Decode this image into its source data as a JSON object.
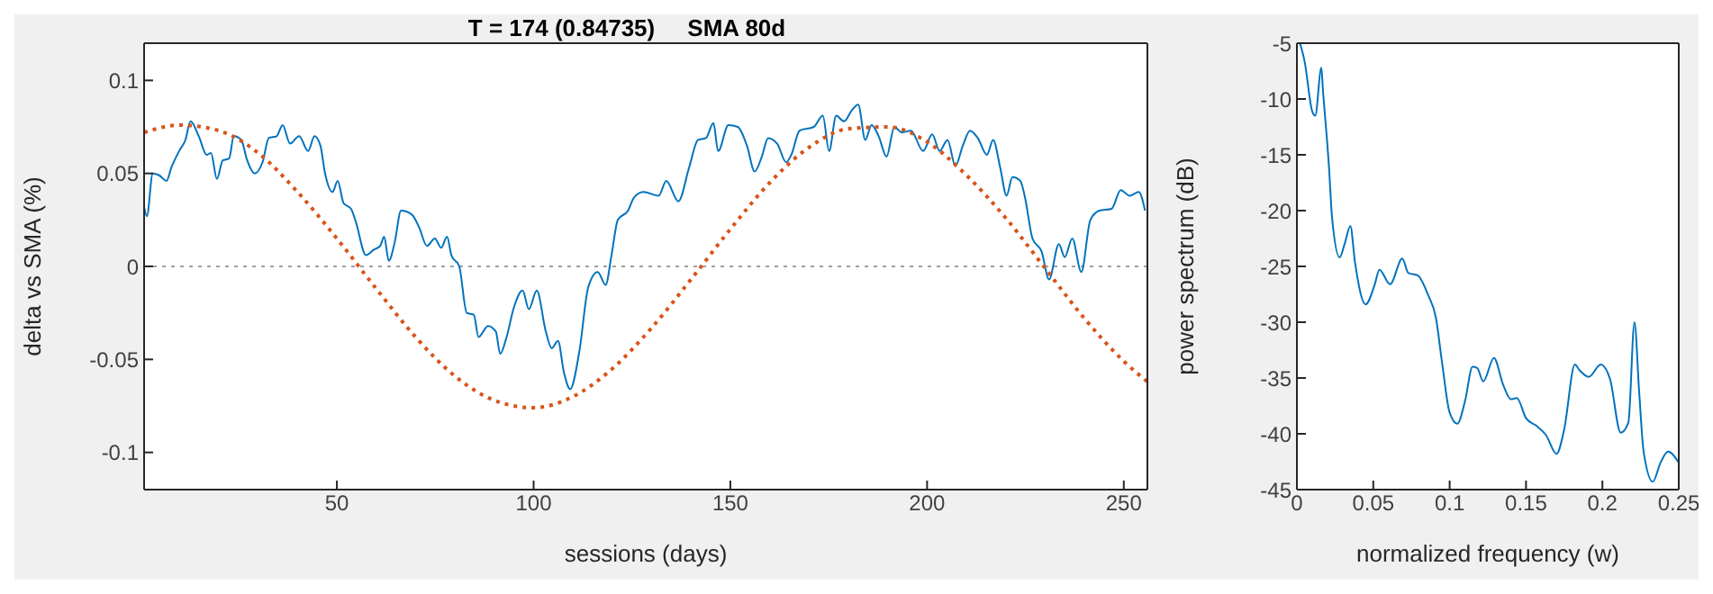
{
  "chart_data": [
    {
      "type": "line",
      "title": "T = 174 (0.84735)     SMA 80d",
      "xlabel": "sessions (days)",
      "ylabel": "delta vs SMA (%)",
      "xlim": [
        1,
        256
      ],
      "xticks": [
        50,
        100,
        150,
        200,
        250
      ],
      "ylim": [
        -0.12,
        0.12
      ],
      "yticks": [
        -0.1,
        -0.05,
        0,
        0.05,
        0.1
      ],
      "marker": "none",
      "ref_lines": [
        {
          "axis": "y",
          "value": 0,
          "color": "#a0a0a0",
          "line_style": "dotted"
        }
      ],
      "series": [
        {
          "color": "#0072bd",
          "line_style": "solid",
          "x": [
            1,
            1.7,
            3.2,
            4.8,
            6.7,
            7.9,
            9.9,
            11.5,
            12.8,
            14.9,
            16.9,
            18,
            19.5,
            21,
            22.6,
            23.8,
            25.7,
            27.2,
            29.1,
            31.1,
            32.7,
            34.7,
            36.2,
            38.1,
            40.4,
            42.7,
            44.3,
            45.8,
            47,
            48.9,
            50.2,
            51.7,
            53.6,
            54.8,
            57.4,
            59.4,
            61,
            62,
            63.2,
            64.7,
            66.3,
            69,
            70.9,
            72.9,
            74.9,
            76.5,
            78,
            79.1,
            81.1,
            83,
            84.8,
            86,
            88.4,
            90.4,
            91.5,
            93,
            95,
            97.2,
            98.8,
            100.8,
            103.1,
            104.6,
            106.2,
            107.7,
            109.3,
            111.6,
            113.9,
            116.3,
            118.3,
            119.8,
            121.4,
            124,
            125.5,
            127.9,
            131.8,
            133.7,
            136.8,
            139.5,
            141.8,
            143.8,
            145.7,
            146.9,
            149.5,
            151.9,
            154.2,
            156.2,
            158,
            159.6,
            161.9,
            164.2,
            165.5,
            167.6,
            171.2,
            173.5,
            175.1,
            176.9,
            178.9,
            180.9,
            182.5,
            184.3,
            185.9,
            187.7,
            189.7,
            191.7,
            193.6,
            195.9,
            199,
            201.3,
            203.2,
            205.2,
            207.2,
            209.1,
            210.9,
            212.9,
            215.2,
            216.8,
            218.6,
            220.2,
            221.7,
            223.7,
            224.8,
            226.8,
            229.1,
            231,
            233.5,
            235,
            236.9,
            239.2,
            241.5,
            243.8,
            246.9,
            249.2,
            251.5,
            253.8,
            255.4
          ],
          "values": [
            0.032,
            0.027,
            0.05,
            0.049,
            0.046,
            0.053,
            0.062,
            0.068,
            0.078,
            0.07,
            0.06,
            0.061,
            0.047,
            0.057,
            0.058,
            0.07,
            0.068,
            0.057,
            0.05,
            0.056,
            0.069,
            0.07,
            0.076,
            0.066,
            0.07,
            0.062,
            0.07,
            0.065,
            0.05,
            0.04,
            0.046,
            0.034,
            0.031,
            0.024,
            0.006,
            0.009,
            0.011,
            0.016,
            0.003,
            0.013,
            0.03,
            0.028,
            0.021,
            0.011,
            0.015,
            0.01,
            0.016,
            0.006,
            0,
            -0.025,
            -0.026,
            -0.038,
            -0.032,
            -0.035,
            -0.047,
            -0.039,
            -0.022,
            -0.013,
            -0.023,
            -0.013,
            -0.035,
            -0.044,
            -0.04,
            -0.057,
            -0.066,
            -0.046,
            -0.011,
            -0.003,
            -0.01,
            0.006,
            0.025,
            0.03,
            0.037,
            0.04,
            0.038,
            0.046,
            0.035,
            0.053,
            0.068,
            0.069,
            0.077,
            0.062,
            0.076,
            0.075,
            0.065,
            0.051,
            0.059,
            0.069,
            0.066,
            0.056,
            0.06,
            0.073,
            0.075,
            0.081,
            0.062,
            0.081,
            0.078,
            0.084,
            0.087,
            0.068,
            0.076,
            0.07,
            0.059,
            0.075,
            0.072,
            0.073,
            0.062,
            0.071,
            0.062,
            0.068,
            0.054,
            0.065,
            0.073,
            0.069,
            0.06,
            0.068,
            0.053,
            0.038,
            0.048,
            0.046,
            0.038,
            0.015,
            0.008,
            -0.007,
            0.012,
            0.005,
            0.015,
            -0.003,
            0.025,
            0.03,
            0.031,
            0.041,
            0.038,
            0.04,
            0.03
          ]
        },
        {
          "color": "#d95319",
          "line_style": "dotted",
          "x": [
            1,
            10,
            20,
            30,
            40,
            50,
            60,
            70,
            80,
            90,
            100,
            110,
            120,
            130,
            140,
            150,
            160,
            170,
            180,
            190,
            200,
            210,
            220,
            230,
            240,
            250,
            256
          ],
          "values": [
            0.072,
            0.076,
            0.073,
            0.061,
            0.04,
            0.015,
            -0.012,
            -0.038,
            -0.059,
            -0.072,
            -0.076,
            -0.07,
            -0.055,
            -0.033,
            -0.007,
            0.02,
            0.045,
            0.064,
            0.074,
            0.075,
            0.067,
            0.049,
            0.026,
            -0.001,
            -0.028,
            -0.051,
            -0.062
          ]
        }
      ]
    },
    {
      "type": "line",
      "xlabel": "normalized frequency (w)",
      "ylabel": "power spectrum (dB)",
      "xlim": [
        0,
        0.25
      ],
      "xticks": [
        0,
        0.05,
        0.1,
        0.15,
        0.2,
        0.25
      ],
      "ylim": [
        -45,
        -5
      ],
      "yticks": [
        -45,
        -40,
        -35,
        -30,
        -25,
        -20,
        -15,
        -10,
        -5
      ],
      "marker": "none",
      "series": [
        {
          "color": "#0072bd",
          "line_style": "solid",
          "x": [
            0.002,
            0.005,
            0.01,
            0.012,
            0.016,
            0.017,
            0.021,
            0.023,
            0.028,
            0.031,
            0.035,
            0.038,
            0.045,
            0.051,
            0.054,
            0.061,
            0.069,
            0.073,
            0.079,
            0.086,
            0.091,
            0.095,
            0.1,
            0.105,
            0.11,
            0.115,
            0.118,
            0.122,
            0.129,
            0.135,
            0.14,
            0.144,
            0.15,
            0.157,
            0.163,
            0.17,
            0.175,
            0.182,
            0.185,
            0.191,
            0.199,
            0.205,
            0.212,
            0.217,
            0.221,
            0.224,
            0.227,
            0.233,
            0.238,
            0.243,
            0.25
          ],
          "values": [
            -5,
            -6.6,
            -11.1,
            -11.5,
            -7.2,
            -9.1,
            -16.1,
            -20.6,
            -24.2,
            -23.1,
            -21.4,
            -24.6,
            -28.4,
            -26.6,
            -25.3,
            -26.6,
            -24.3,
            -25.6,
            -25.8,
            -27.6,
            -29.6,
            -33.6,
            -38.1,
            -39.1,
            -37.1,
            -34,
            -34.1,
            -35.3,
            -33.2,
            -35.6,
            -36.9,
            -36.8,
            -38.6,
            -39.3,
            -40.1,
            -41.8,
            -39.6,
            -33.8,
            -34.3,
            -34.9,
            -33.8,
            -35.1,
            -39.9,
            -39,
            -30,
            -36.1,
            -41.6,
            -44.3,
            -42.6,
            -41.6,
            -42.6
          ]
        }
      ]
    }
  ]
}
